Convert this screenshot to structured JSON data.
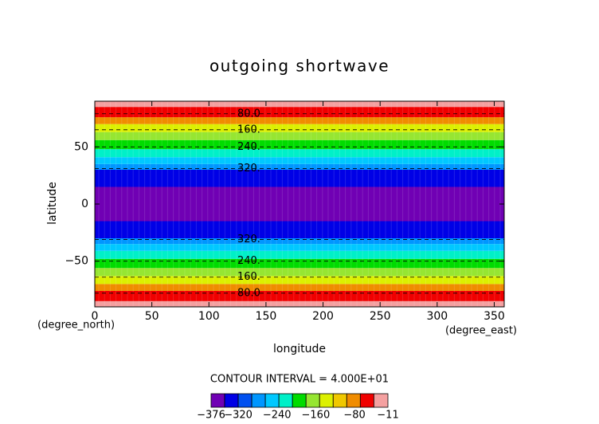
{
  "chart_data": {
    "type": "contour",
    "title": "outgoing shortwave",
    "x_label": "longitude",
    "y_label": "latitude",
    "x_unit": "(degree_east)",
    "y_unit": "(degree_north)",
    "xlim": [
      0,
      358.75
    ],
    "ylim": [
      -90,
      90
    ],
    "xticks": [
      0,
      50,
      100,
      150,
      200,
      250,
      300,
      350
    ],
    "yticks": [
      {
        "value": -50,
        "label": "−50"
      },
      0,
      50
    ],
    "bands": [
      {
        "from": -90,
        "to": -85,
        "color": "#f4a0a0"
      },
      {
        "from": -85,
        "to": -76,
        "color": "#f00000"
      },
      {
        "from": -76,
        "to": -70,
        "color": "#f08c00"
      },
      {
        "from": -70,
        "to": -63,
        "color": "#dcf000"
      },
      {
        "from": -63,
        "to": -56,
        "color": "#96e632"
      },
      {
        "from": -56,
        "to": -48,
        "color": "#00dc00"
      },
      {
        "from": -48,
        "to": -41,
        "color": "#00f0c8"
      },
      {
        "from": -41,
        "to": -35,
        "color": "#00c8ff"
      },
      {
        "from": -35,
        "to": -30,
        "color": "#0096ff"
      },
      {
        "from": -30,
        "to": -15,
        "color": "#0000e6"
      },
      {
        "from": -15,
        "to": 15,
        "color": "#7000b4"
      },
      {
        "from": 15,
        "to": 30,
        "color": "#0000e6"
      },
      {
        "from": 30,
        "to": 35,
        "color": "#0096ff"
      },
      {
        "from": 35,
        "to": 41,
        "color": "#00c8ff"
      },
      {
        "from": 41,
        "to": 48,
        "color": "#00f0c8"
      },
      {
        "from": 48,
        "to": 56,
        "color": "#00dc00"
      },
      {
        "from": 56,
        "to": 63,
        "color": "#96e632"
      },
      {
        "from": 63,
        "to": 70,
        "color": "#dcf000"
      },
      {
        "from": 70,
        "to": 76,
        "color": "#f08c00"
      },
      {
        "from": 76,
        "to": 85,
        "color": "#f00000"
      },
      {
        "from": 85,
        "to": 90,
        "color": "#f4a0a0"
      }
    ],
    "contours": [
      {
        "label": "80.0",
        "lat": 79,
        "lon": 135
      },
      {
        "label": "160.",
        "lat": 65,
        "lon": 135
      },
      {
        "label": "240.",
        "lat": 50,
        "lon": 135
      },
      {
        "label": "320.",
        "lat": 31,
        "lon": 135
      },
      {
        "label": "320.",
        "lat": -31,
        "lon": 135
      },
      {
        "label": "240.",
        "lat": -50,
        "lon": 135
      },
      {
        "label": "160.",
        "lat": -64,
        "lon": 135
      },
      {
        "label": "80.0",
        "lat": -78,
        "lon": 135
      }
    ],
    "contour_interval_text": "CONTOUR INTERVAL = 4.000E+01",
    "colorbar": {
      "lim": [
        -376,
        -11
      ],
      "levels": [
        -376,
        -348,
        -320,
        -292,
        -264,
        -236,
        -208,
        -180,
        -152,
        -124,
        -96,
        -68,
        -40,
        -11
      ],
      "colors": [
        "#7000b4",
        "#0000e6",
        "#0050f0",
        "#0096ff",
        "#00c8ff",
        "#00f0c8",
        "#00dc00",
        "#96e632",
        "#dcf000",
        "#f0c800",
        "#f08c00",
        "#f00000",
        "#f4a0a0"
      ],
      "ticks": [
        {
          "value": -376,
          "label": "−376"
        },
        {
          "value": -320,
          "label": "−320"
        },
        {
          "value": -240,
          "label": "−240"
        },
        {
          "value": -160,
          "label": "−160"
        },
        {
          "value": -80,
          "label": "−80"
        },
        {
          "value": -11,
          "label": "−11"
        }
      ]
    }
  }
}
